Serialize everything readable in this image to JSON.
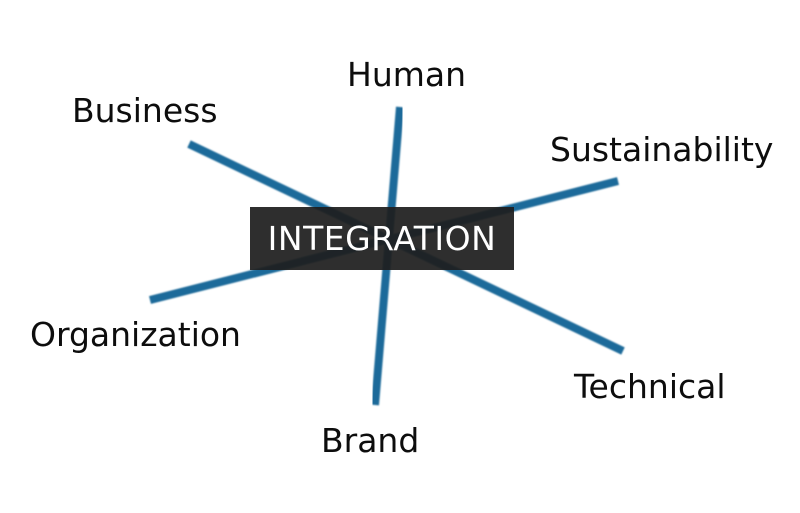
{
  "center": {
    "label": "INTEGRATION"
  },
  "dimensions": {
    "human": "Human",
    "business": "Business",
    "sustainability": "Sustainability",
    "organization": "Organization",
    "technical": "Technical",
    "brand": "Brand"
  },
  "colors": {
    "line": "#1f6a9a",
    "center_background": "#1e1e1e",
    "center_text": "#ffffff",
    "label_text": "#0d0d0d"
  }
}
